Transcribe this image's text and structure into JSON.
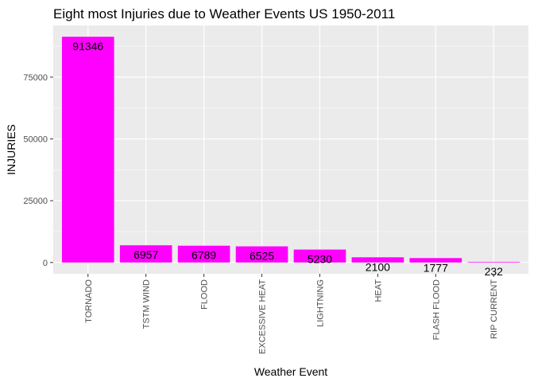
{
  "chart_data": {
    "type": "bar",
    "title": "Eight most Injuries due to Weather Events US 1950-2011",
    "xlabel": "Weather Event",
    "ylabel": "INJURIES",
    "categories": [
      "TORNADO",
      "TSTM WIND",
      "FLOOD",
      "EXCESSIVE HEAT",
      "LIGHTNING",
      "HEAT",
      "FLASH FLOOD",
      "RIP CURRENT"
    ],
    "values": [
      91346,
      6957,
      6789,
      6525,
      5230,
      2100,
      1777,
      232
    ],
    "value_labels": [
      "91346",
      "6957",
      "6789",
      "6525",
      "5230",
      "2100",
      "1777",
      "232"
    ],
    "yticks": [
      0,
      25000,
      50000,
      75000
    ],
    "ytick_labels": [
      "0",
      "25000",
      "50000",
      "75000"
    ],
    "ylim": [
      -4567,
      95913
    ],
    "grid": true,
    "legend": "none",
    "bar_color": "#FF00FF",
    "panel_color": "#EBEBEB",
    "grid_color": "#FFFFFF"
  }
}
